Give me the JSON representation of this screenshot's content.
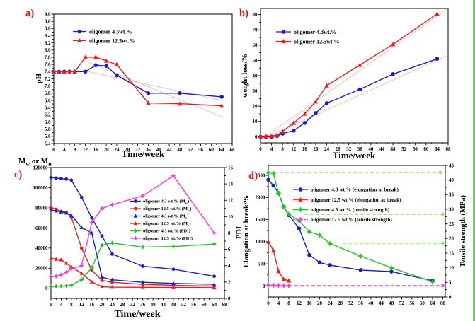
{
  "figure": {
    "background": "#ffffff",
    "panel_letter_color": "#e31212",
    "edge_artifact_color": "#74c06c"
  },
  "chart_data": [
    {
      "id": "a",
      "type": "line",
      "panel_label": "a)",
      "xlabel": "Time/week",
      "ylabel": "pH",
      "x_range": [
        0,
        68
      ],
      "y_range": [
        5.4,
        9.0
      ],
      "x_ticks": {
        "from": 0,
        "to": 68,
        "step": 4,
        "minor": 2
      },
      "y_ticks": {
        "from": 5.4,
        "to": 9.0,
        "step": 0.2,
        "minor": 0.1,
        "decimals": 1
      },
      "grid": false,
      "legend_position": "upper-left-inside",
      "series": [
        {
          "name": "linear fit oligomer 12.5wt.%",
          "color": "#ffa0a0",
          "width": 0.7,
          "marker": "none",
          "x": [
            12,
            64
          ],
          "y": [
            7.7,
            6.15
          ]
        },
        {
          "name": "linear fit oligomer 4.3wt.%",
          "color": "#ffa0a0",
          "width": 0.7,
          "marker": "none",
          "x": [
            12,
            64
          ],
          "y": [
            7.42,
            6.6
          ]
        },
        {
          "name": "oligomer 4.3wt.%",
          "color": "#1c1ccd",
          "marker": "circle",
          "legend": true,
          "x": [
            0,
            2,
            4,
            6,
            8,
            12,
            16,
            20,
            24,
            36,
            48,
            64
          ],
          "y": [
            7.4,
            7.4,
            7.4,
            7.4,
            7.4,
            7.4,
            7.58,
            7.56,
            7.3,
            6.8,
            6.8,
            6.7
          ]
        },
        {
          "name": "oligomer 12.5wt.%",
          "color": "#ec1c1c",
          "marker": "triangle",
          "legend": true,
          "x": [
            0,
            2,
            4,
            6,
            8,
            12,
            16,
            20,
            24,
            36,
            48,
            64
          ],
          "y": [
            7.4,
            7.4,
            7.39,
            7.41,
            7.4,
            7.8,
            7.81,
            7.7,
            7.6,
            6.53,
            6.51,
            6.45
          ]
        }
      ]
    },
    {
      "id": "b",
      "type": "line",
      "panel_label": "b)",
      "xlabel": "Time/week",
      "ylabel": "weight loss/%",
      "x_range": [
        0,
        68
      ],
      "y_range": [
        -4,
        84
      ],
      "x_ticks": {
        "from": 0,
        "to": 68,
        "step": 4,
        "minor": 2
      },
      "y_ticks": {
        "from": 0,
        "to": 80,
        "step": 10,
        "minor": 5
      },
      "grid": false,
      "legend_position": "upper-left-inside",
      "series": [
        {
          "name": "linear fit oligomer 4.3wt.%",
          "color": "#ffa0a0",
          "width": 0.7,
          "marker": "none",
          "x": [
            0,
            68
          ],
          "y": [
            -2,
            53.5
          ]
        },
        {
          "name": "linear fit oligomer 12.5wt.%",
          "color": "#ffa0a0",
          "width": 0.7,
          "marker": "none",
          "x": [
            0,
            68
          ],
          "y": [
            -2,
            84
          ]
        },
        {
          "name": "oligomer 4.3wt.%",
          "color": "#1c1ccd",
          "marker": "circle",
          "legend": true,
          "x": [
            0,
            2,
            4,
            6,
            8,
            12,
            16,
            20,
            24,
            36,
            48,
            64
          ],
          "y": [
            0,
            0,
            0,
            0.5,
            2,
            4,
            9,
            15.5,
            22,
            31,
            41,
            51
          ]
        },
        {
          "name": "oligomer 12.5wt.%",
          "color": "#ec1c1c",
          "marker": "triangle",
          "legend": true,
          "x": [
            0,
            2,
            4,
            6,
            8,
            12,
            16,
            20,
            24,
            36,
            48,
            64
          ],
          "y": [
            0.3,
            0.3,
            0.5,
            1,
            3.5,
            9,
            15,
            23,
            33.5,
            47,
            60.5,
            80.5
          ]
        }
      ]
    },
    {
      "id": "c",
      "type": "line",
      "panel_label": "c)",
      "xlabel": "Time/week",
      "ylabel_top": "M_w_ or M_n_",
      "y2label": "PDI",
      "x_range": [
        0,
        68
      ],
      "y_range": [
        -10000,
        120000
      ],
      "y2_range": [
        0,
        16
      ],
      "x_ticks": {
        "from": 0,
        "to": 68,
        "step": 4,
        "minor": 2
      },
      "y_ticks": {
        "from": 0,
        "to": 120000,
        "step": 20000,
        "minor": 10000
      },
      "y2_ticks": {
        "from": 0,
        "to": 16,
        "step": 2,
        "minor": 1
      },
      "grid": false,
      "legend_position": "middle-right-inside",
      "series": [
        {
          "name": "oligomer 4.3 wt.% (M_w_)",
          "color": "#1c1ccd",
          "marker": "circle",
          "legend": true,
          "x": [
            0,
            2,
            4,
            6,
            8,
            12,
            16,
            20,
            24,
            36,
            48,
            64
          ],
          "y": [
            110000,
            109500,
            109000,
            108500,
            107500,
            90500,
            70000,
            52000,
            34000,
            22000,
            19000,
            12000
          ]
        },
        {
          "name": "oligomer 12.5 wt.% (M_w_)",
          "color": "#ec1c1c",
          "marker": "circle",
          "legend": true,
          "x": [
            0,
            2,
            4,
            6,
            8,
            12,
            16,
            20,
            24,
            36,
            48,
            64
          ],
          "y": [
            80500,
            78500,
            76500,
            75500,
            70500,
            40000,
            18000,
            8000,
            6000,
            4000,
            3000,
            2200
          ]
        },
        {
          "name": "oligomer 4.3 wt.% (M_n_)",
          "color": "#1c1ccd",
          "marker": "triangle",
          "legend": true,
          "x": [
            0,
            2,
            4,
            6,
            8,
            12,
            16,
            20,
            24,
            36,
            48,
            64
          ],
          "y": [
            78000,
            77000,
            76000,
            75000,
            72500,
            60500,
            55000,
            11000,
            8500,
            6000,
            5000,
            4000
          ]
        },
        {
          "name": "oligomer 12.5 wt.% (M_n_)",
          "color": "#ec1c1c",
          "marker": "triangle",
          "legend": true,
          "x": [
            0,
            2,
            4,
            6,
            8,
            12,
            16,
            20,
            24,
            36,
            48,
            64
          ],
          "y": [
            30000,
            29000,
            28500,
            25000,
            21500,
            15000,
            6500,
            1500,
            1200,
            1000,
            800,
            700
          ]
        },
        {
          "name": "oligomer 4.3 wt.% (PDI)",
          "color": "#22c520",
          "marker": "star",
          "legend": true,
          "axis": "y2",
          "x": [
            0,
            2,
            4,
            6,
            8,
            12,
            16,
            20,
            24,
            36,
            48,
            64
          ],
          "y": [
            1.42,
            1.48,
            1.5,
            1.54,
            1.62,
            2.28,
            3.75,
            6.52,
            6.77,
            6.28,
            6.34,
            6.65
          ]
        },
        {
          "name": "oligomer 12.5 wt.% (PDI)",
          "color": "#f83ad8",
          "marker": "star",
          "legend": true,
          "axis": "y2",
          "x": [
            0,
            2,
            4,
            6,
            8,
            12,
            16,
            20,
            24,
            36,
            48,
            64
          ],
          "y": [
            2.65,
            2.71,
            2.89,
            3.2,
            3.63,
            4.0,
            9.29,
            11.01,
            11.45,
            12.55,
            15.0,
            8.0
          ]
        }
      ]
    },
    {
      "id": "d",
      "type": "line",
      "panel_label": "d)",
      "ylabel": "Elongation at break/%",
      "y2label": "Tensile strength (MPa)",
      "x_range": [
        0,
        69
      ],
      "y_range": [
        -250,
        2725
      ],
      "y2_range": [
        0,
        45
      ],
      "x_ticks": {
        "from": 0,
        "to": 68,
        "step": 4,
        "minor": 2
      },
      "y_ticks": {
        "from": 0,
        "to": 2500,
        "step": 500,
        "minor": 250
      },
      "y2_ticks": {
        "from": 0,
        "to": 45,
        "step": 5,
        "minor": 2.5
      },
      "grid": false,
      "legend_position": "upper-middle-inside",
      "ref_lines": [
        {
          "y2": 42.6,
          "x1": 0,
          "x2": 67,
          "color": "#8ee055",
          "marker": "star",
          "marker_x": 67
        },
        {
          "y2": 28.3,
          "x1": 14,
          "x2": 68,
          "color": "#8ee055",
          "marker": "star",
          "marker_x": 68
        },
        {
          "y2": 18.4,
          "x1": 29,
          "x2": 68,
          "color": "#8ee055",
          "marker": "star",
          "marker_x": 68
        },
        {
          "y2": 3.9,
          "x1": 8,
          "x2": 68,
          "color": "#ff49da",
          "marker": "square",
          "marker_x": 68
        }
      ],
      "series": [
        {
          "name": "oligomer 4.3 wt.% (elongation at break)",
          "color": "#1c1ccd",
          "marker": "circle",
          "legend": true,
          "x": [
            0,
            2,
            4,
            6,
            8,
            12,
            16,
            20,
            24,
            36,
            48,
            64
          ],
          "y": [
            2400,
            2270,
            2100,
            1790,
            1600,
            1300,
            700,
            530,
            470,
            360,
            325,
            120
          ]
        },
        {
          "name": "oligomer 12.5 wt.% (elongation at break)",
          "color": "#ec1c1c",
          "marker": "triangle",
          "legend": true,
          "x": [
            0,
            2,
            4,
            6,
            8
          ],
          "y": [
            1000,
            800,
            330,
            150,
            120
          ]
        },
        {
          "name": "oligomer 4.3 wt.% (tensile strength)",
          "color": "#22c520",
          "marker": "star",
          "legend": true,
          "axis": "y2",
          "x": [
            0,
            2,
            4,
            6,
            8,
            12,
            16,
            20,
            24,
            36,
            48,
            64
          ],
          "y": [
            42.5,
            42.3,
            35.5,
            30.8,
            28.3,
            26.0,
            22.3,
            21.2,
            18.3,
            14.0,
            10.0,
            5.2
          ]
        },
        {
          "name": "oligomer 12.5 wt.% (tensile strength)",
          "color": "#f83ad8",
          "marker": "star",
          "legend": true,
          "dash_sample": true,
          "x": [
            0,
            2,
            4,
            6,
            8
          ],
          "y": [
            15.0,
            13.6,
            10.3,
            5.6,
            4.1
          ]
        }
      ]
    }
  ]
}
